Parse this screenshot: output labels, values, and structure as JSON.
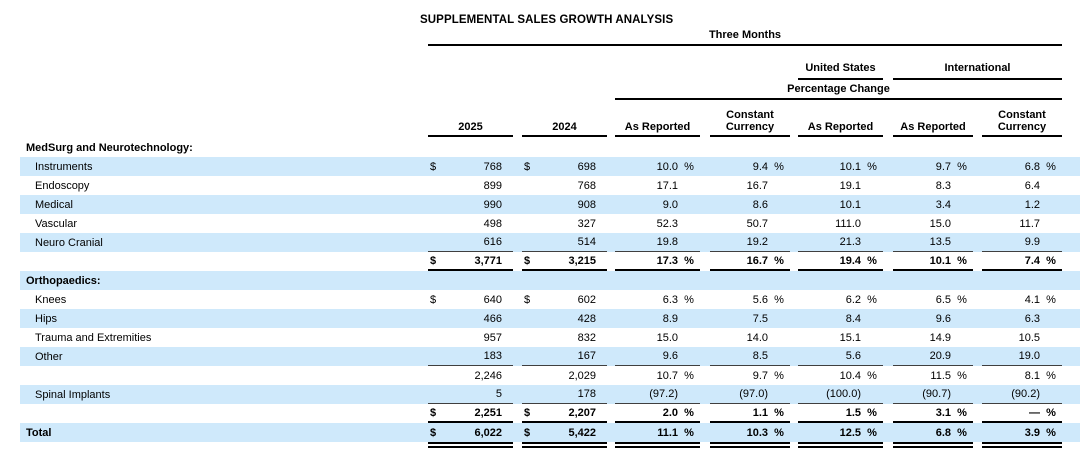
{
  "title": "SUPPLEMENTAL SALES GROWTH ANALYSIS",
  "symbols": {
    "dollar": "$",
    "percent": "%"
  },
  "colors": {
    "row_shade": "#cfe9fb",
    "rule": "#000000"
  },
  "header": {
    "period": "Three Months",
    "us": "United States",
    "intl": "International",
    "pct_change": "Percentage Change",
    "columns": [
      "2025",
      "2024",
      "As Reported",
      "Constant Currency",
      "As Reported",
      "As Reported",
      "Constant Currency"
    ]
  },
  "table_rows": [
    {
      "label": "MedSurg and Neurotechnology:",
      "style": "section",
      "shaded": false,
      "bold": true,
      "dollar": false,
      "pct": false,
      "rule": "none",
      "values": [
        "",
        "",
        "",
        "",
        "",
        "",
        ""
      ]
    },
    {
      "label": "Instruments",
      "style": "item",
      "shaded": true,
      "bold": false,
      "dollar": true,
      "pct": true,
      "rule": "none",
      "values": [
        "768",
        "698",
        "10.0",
        "9.4",
        "10.1",
        "9.7",
        "6.8"
      ]
    },
    {
      "label": "Endoscopy",
      "style": "item",
      "shaded": false,
      "bold": false,
      "dollar": false,
      "pct": false,
      "rule": "none",
      "values": [
        "899",
        "768",
        "17.1",
        "16.7",
        "19.1",
        "8.3",
        "6.4"
      ]
    },
    {
      "label": "Medical",
      "style": "item",
      "shaded": true,
      "bold": false,
      "dollar": false,
      "pct": false,
      "rule": "none",
      "values": [
        "990",
        "908",
        "9.0",
        "8.6",
        "10.1",
        "3.4",
        "1.2"
      ]
    },
    {
      "label": "Vascular",
      "style": "item",
      "shaded": false,
      "bold": false,
      "dollar": false,
      "pct": false,
      "rule": "none",
      "values": [
        "498",
        "327",
        "52.3",
        "50.7",
        "111.0",
        "15.0",
        "11.7"
      ]
    },
    {
      "label": "Neuro Cranial",
      "style": "item",
      "shaded": true,
      "bold": false,
      "dollar": false,
      "pct": false,
      "rule": "thin",
      "values": [
        "616",
        "514",
        "19.8",
        "19.2",
        "21.3",
        "13.5",
        "9.9"
      ]
    },
    {
      "label": "",
      "style": "blank",
      "shaded": false,
      "bold": true,
      "dollar": true,
      "pct": true,
      "rule": "thick",
      "values": [
        "3,771",
        "3,215",
        "17.3",
        "16.7",
        "19.4",
        "10.1",
        "7.4"
      ]
    },
    {
      "label": "Orthopaedics:",
      "style": "section",
      "shaded": true,
      "bold": true,
      "dollar": false,
      "pct": false,
      "rule": "none",
      "values": [
        "",
        "",
        "",
        "",
        "",
        "",
        ""
      ]
    },
    {
      "label": "Knees",
      "style": "item",
      "shaded": false,
      "bold": false,
      "dollar": true,
      "pct": true,
      "rule": "none",
      "values": [
        "640",
        "602",
        "6.3",
        "5.6",
        "6.2",
        "6.5",
        "4.1"
      ]
    },
    {
      "label": "Hips",
      "style": "item",
      "shaded": true,
      "bold": false,
      "dollar": false,
      "pct": false,
      "rule": "none",
      "values": [
        "466",
        "428",
        "8.9",
        "7.5",
        "8.4",
        "9.6",
        "6.3"
      ]
    },
    {
      "label": "Trauma and Extremities",
      "style": "item",
      "shaded": false,
      "bold": false,
      "dollar": false,
      "pct": false,
      "rule": "none",
      "values": [
        "957",
        "832",
        "15.0",
        "14.0",
        "15.1",
        "14.9",
        "10.5"
      ]
    },
    {
      "label": "Other",
      "style": "item",
      "shaded": true,
      "bold": false,
      "dollar": false,
      "pct": false,
      "rule": "thin",
      "values": [
        "183",
        "167",
        "9.6",
        "8.5",
        "5.6",
        "20.9",
        "19.0"
      ]
    },
    {
      "label": "",
      "style": "blank",
      "shaded": false,
      "bold": false,
      "dollar": false,
      "pct": true,
      "rule": "none",
      "values": [
        "2,246",
        "2,029",
        "10.7",
        "9.7",
        "10.4",
        "11.5",
        "8.1"
      ]
    },
    {
      "label": "Spinal Implants",
      "style": "item",
      "shaded": true,
      "bold": false,
      "dollar": false,
      "pct": false,
      "rule": "thin",
      "values": [
        "5",
        "178",
        "(97.2)",
        "(97.0)",
        "(100.0)",
        "(90.7)",
        "(90.2)"
      ]
    },
    {
      "label": "",
      "style": "blank",
      "shaded": false,
      "bold": true,
      "dollar": true,
      "pct": true,
      "rule": "thick",
      "values": [
        "2,251",
        "2,207",
        "2.0",
        "1.1",
        "1.5",
        "3.1",
        "—"
      ]
    },
    {
      "label": "Total",
      "style": "total",
      "shaded": true,
      "bold": true,
      "dollar": true,
      "pct": true,
      "rule": "double",
      "values": [
        "6,022",
        "5,422",
        "11.1",
        "10.3",
        "12.5",
        "6.8",
        "3.9"
      ]
    }
  ]
}
